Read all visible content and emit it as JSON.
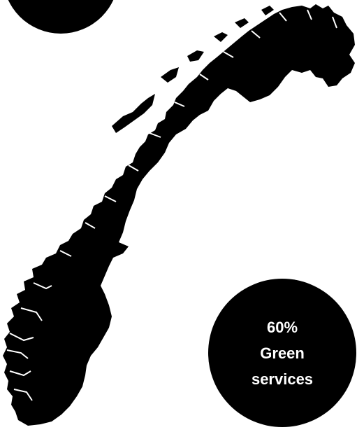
{
  "map": {
    "region": "Norway",
    "fill_color": "#000000",
    "background_color": "#ffffff"
  },
  "stat": {
    "value": "60%",
    "line1": "Green",
    "line2": "services",
    "circle_color": "#000000",
    "text_color": "#ffffff"
  }
}
